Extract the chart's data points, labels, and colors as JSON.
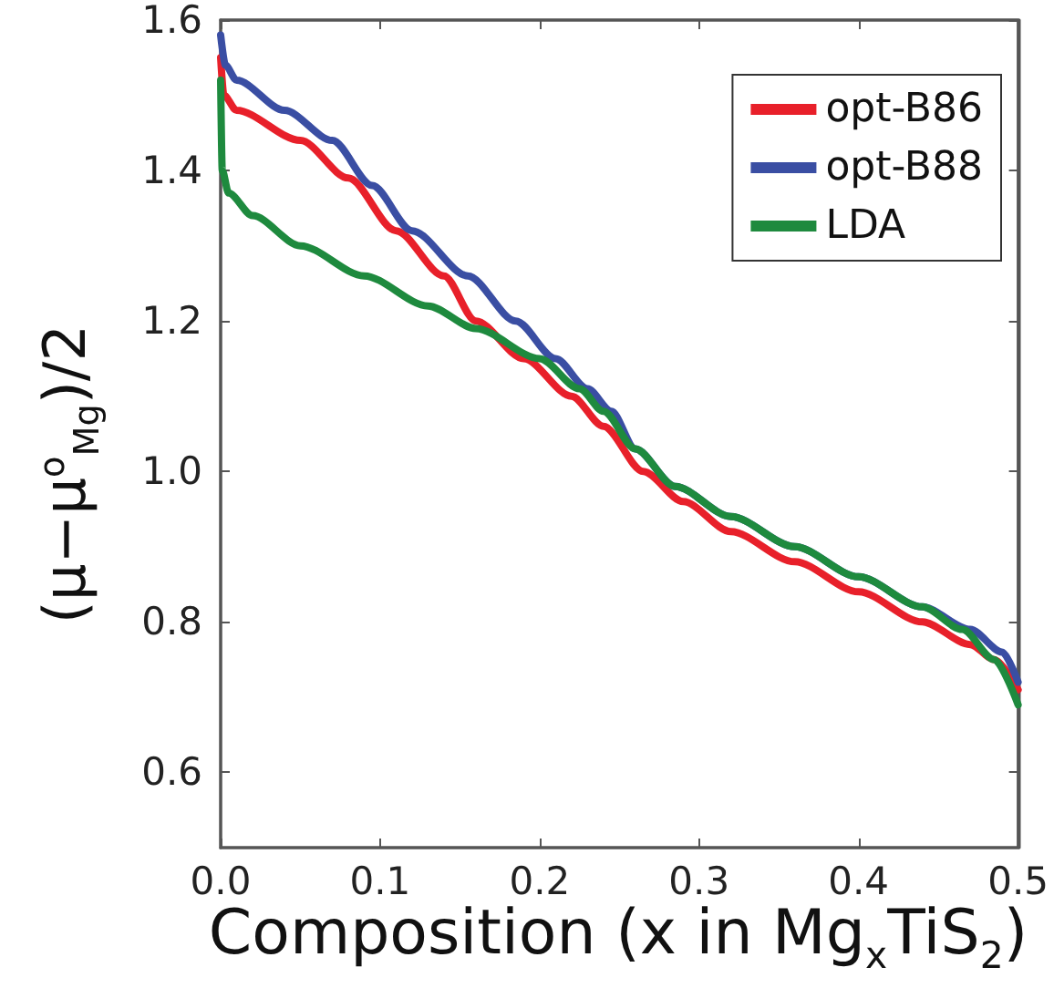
{
  "chart_data": {
    "type": "line",
    "xlabel": "Composition (x in Mg$_{x}$TiS$_{2}$)",
    "ylabel": "(μ−μ$^{o}$$_{Mg}$)/2",
    "xlim": [
      0,
      0.5
    ],
    "xticks": [
      {
        "value": 0,
        "label": "0.0"
      },
      0.1,
      0.2,
      0.3,
      0.4,
      0.5
    ],
    "ylim": [
      0.5,
      1.6
    ],
    "yticks": [
      0.6,
      0.8,
      {
        "value": 1,
        "label": "1.0"
      },
      1.2,
      1.4,
      1.6
    ],
    "legend": "top right",
    "grid": false,
    "marker": "none",
    "line_style": "solid",
    "series": [
      {
        "name": "opt-B86",
        "color": "#e8202a",
        "x": [
          0,
          0.002,
          0.01,
          0.05,
          0.08,
          0.11,
          0.14,
          0.16,
          0.19,
          0.22,
          0.24,
          0.265,
          0.29,
          0.32,
          0.36,
          0.4,
          0.44,
          0.47,
          0.485,
          0.5
        ],
        "values": [
          1.55,
          1.5,
          1.48,
          1.44,
          1.39,
          1.32,
          1.26,
          1.2,
          1.15,
          1.1,
          1.06,
          1.0,
          0.96,
          0.92,
          0.88,
          0.84,
          0.8,
          0.77,
          0.75,
          0.71
        ]
      },
      {
        "name": "opt-B88",
        "color": "#3a4ea3",
        "x": [
          0,
          0.003,
          0.01,
          0.04,
          0.07,
          0.095,
          0.12,
          0.155,
          0.185,
          0.21,
          0.23,
          0.245,
          0.26,
          0.285,
          0.32,
          0.36,
          0.4,
          0.44,
          0.47,
          0.49,
          0.5
        ],
        "values": [
          1.58,
          1.54,
          1.52,
          1.48,
          1.44,
          1.38,
          1.32,
          1.26,
          1.2,
          1.15,
          1.11,
          1.08,
          1.03,
          0.98,
          0.94,
          0.9,
          0.86,
          0.82,
          0.79,
          0.76,
          0.72
        ]
      },
      {
        "name": "LDA",
        "color": "#1e8a3e",
        "x": [
          0,
          0.001,
          0.005,
          0.02,
          0.05,
          0.09,
          0.13,
          0.16,
          0.2,
          0.225,
          0.24,
          0.26,
          0.285,
          0.32,
          0.36,
          0.4,
          0.44,
          0.465,
          0.485,
          0.5
        ],
        "values": [
          1.52,
          1.4,
          1.37,
          1.34,
          1.3,
          1.26,
          1.22,
          1.19,
          1.15,
          1.11,
          1.08,
          1.03,
          0.98,
          0.94,
          0.9,
          0.86,
          0.82,
          0.79,
          0.75,
          0.69
        ]
      }
    ]
  }
}
